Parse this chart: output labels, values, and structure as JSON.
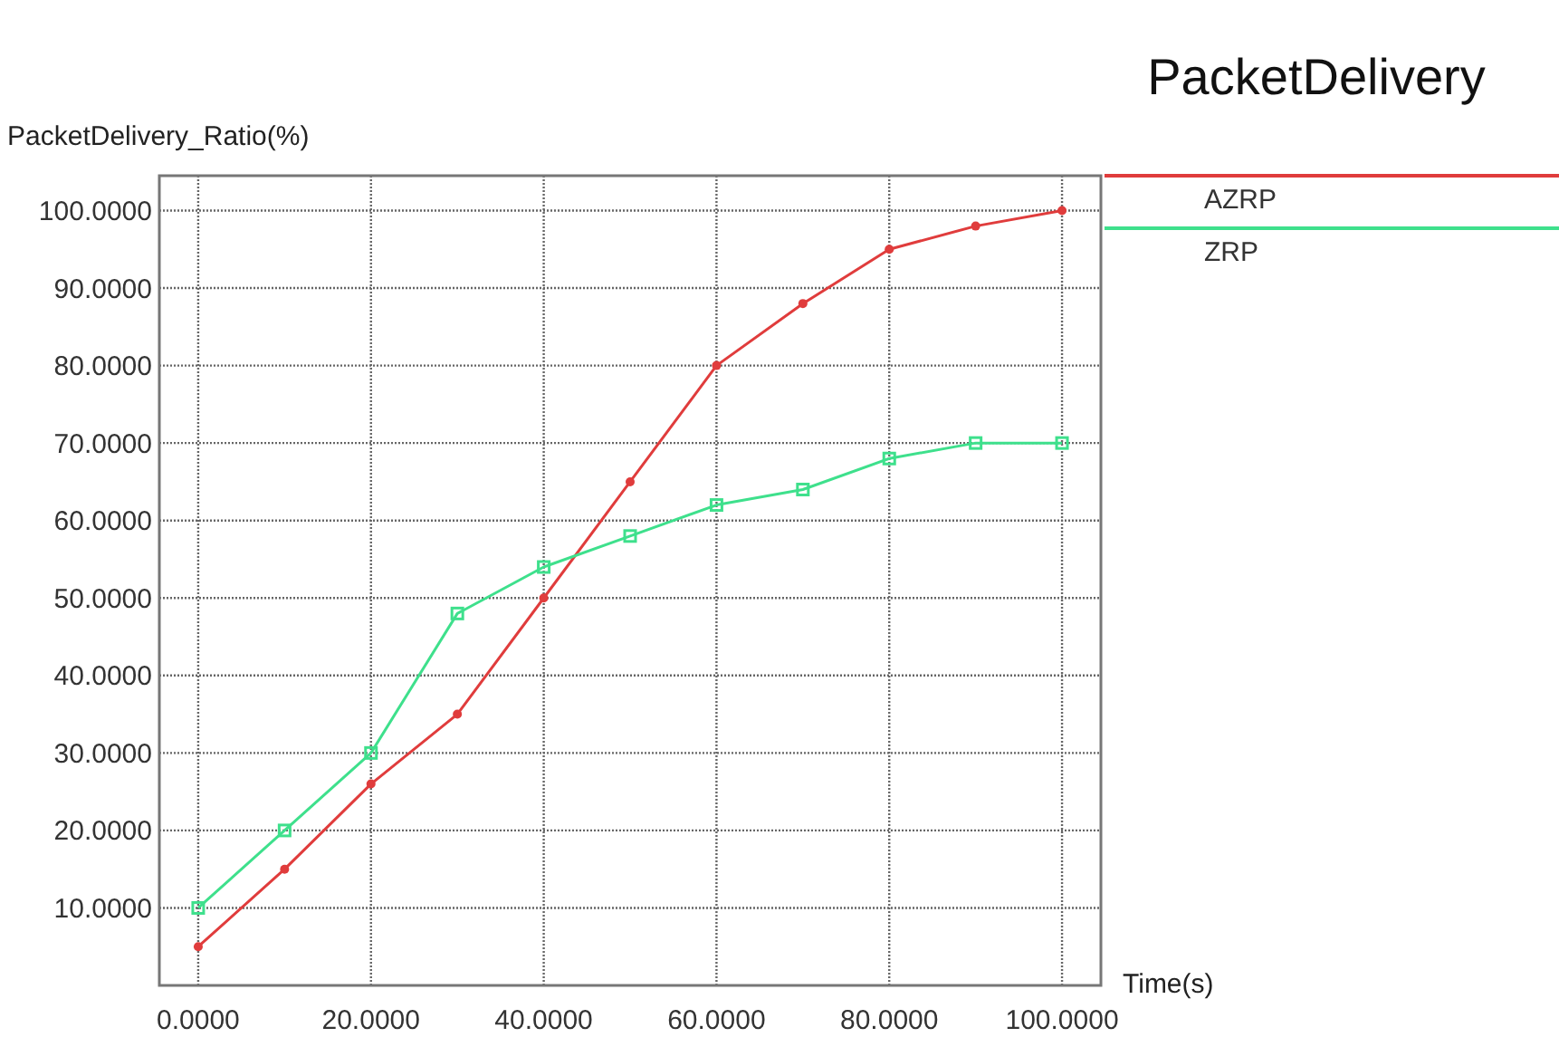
{
  "chart_data": {
    "type": "line",
    "title": "PacketDelivery",
    "xlabel": "Time(s)",
    "ylabel": "PacketDelivery_Ratio(%)",
    "xlim": [
      -4.5,
      104.5
    ],
    "ylim": [
      0,
      104.5
    ],
    "xticks": [
      {
        "value": 0,
        "label": "0.0000"
      },
      {
        "value": 20,
        "label": "20.0000"
      },
      {
        "value": 40,
        "label": "40.0000"
      },
      {
        "value": 60,
        "label": "60.0000"
      },
      {
        "value": 80,
        "label": "80.0000"
      },
      {
        "value": 100,
        "label": "100.0000"
      }
    ],
    "yticks": [
      {
        "value": 10,
        "label": "10.0000"
      },
      {
        "value": 20,
        "label": "20.0000"
      },
      {
        "value": 30,
        "label": "30.0000"
      },
      {
        "value": 40,
        "label": "40.0000"
      },
      {
        "value": 50,
        "label": "50.0000"
      },
      {
        "value": 60,
        "label": "60.0000"
      },
      {
        "value": 70,
        "label": "70.0000"
      },
      {
        "value": 80,
        "label": "80.0000"
      },
      {
        "value": 90,
        "label": "90.0000"
      },
      {
        "value": 100,
        "label": "100.0000"
      }
    ],
    "x": [
      0,
      10,
      20,
      30,
      40,
      50,
      60,
      70,
      80,
      90,
      100
    ],
    "series": [
      {
        "name": "AZRP",
        "color": "#e03c3c",
        "marker": "circle",
        "values": [
          5,
          15,
          26,
          35,
          50,
          65,
          80,
          88,
          95,
          98,
          100
        ]
      },
      {
        "name": "ZRP",
        "color": "#3ee08c",
        "marker": "square",
        "values": [
          10,
          20,
          30,
          48,
          54,
          58,
          62,
          64,
          68,
          70,
          70
        ]
      }
    ],
    "grid": true,
    "legend": "right",
    "line_style": "solid"
  }
}
